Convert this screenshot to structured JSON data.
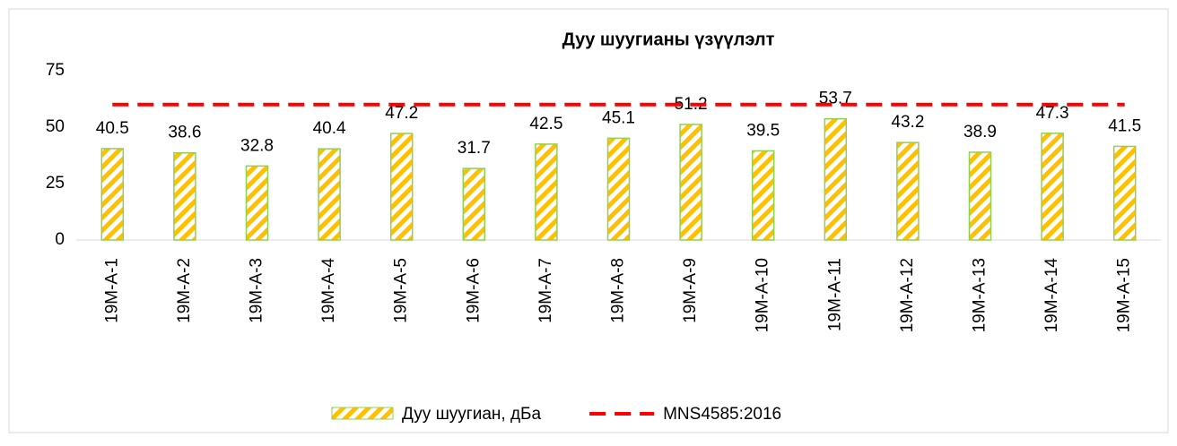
{
  "chart_data": {
    "type": "bar",
    "title": "Дуу шуугианы үзүүлэлт",
    "categories": [
      "19M-A-1",
      "19M-A-2",
      "19M-A-3",
      "19M-A-4",
      "19M-A-5",
      "19M-A-6",
      "19M-A-7",
      "19M-A-8",
      "19M-A-9",
      "19M-A-10",
      "19M-A-11",
      "19M-A-12",
      "19M-A-13",
      "19M-A-14",
      "19M-A-15"
    ],
    "series": [
      {
        "name": "Дуу шуугиан, дБа",
        "type": "bar",
        "color": "#ffc000",
        "edge_color": "#92d050",
        "values": [
          40.5,
          38.6,
          32.8,
          40.4,
          47.2,
          31.7,
          42.5,
          45.1,
          51.2,
          39.5,
          53.7,
          43.2,
          38.9,
          47.3,
          41.5
        ]
      },
      {
        "name": "MNS4585:2016",
        "type": "line",
        "color": "#ff0000",
        "values": [
          60,
          60,
          60,
          60,
          60,
          60,
          60,
          60,
          60,
          60,
          60,
          60,
          60,
          60,
          60
        ]
      }
    ],
    "ylim": [
      0,
      75
    ],
    "yticks": [
      0,
      25,
      50,
      75
    ],
    "grid": false,
    "legend": "bottom"
  }
}
